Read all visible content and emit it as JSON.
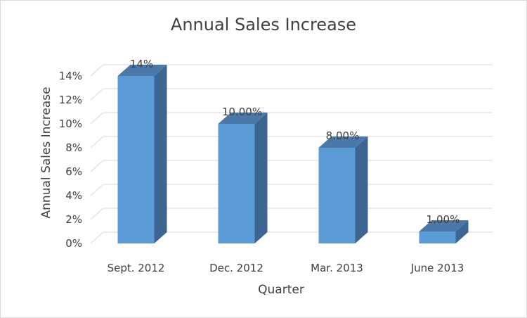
{
  "chart_data": {
    "type": "bar",
    "title": "Annual Sales Increase",
    "xlabel": "Quarter",
    "ylabel": "Annual Sales Increase",
    "categories": [
      "Sept. 2012",
      "Dec. 2012",
      "Mar. 2013",
      "June 2013"
    ],
    "values": [
      14,
      10,
      8,
      1
    ],
    "data_labels": [
      "14%",
      "10.00%",
      "8.00%",
      "1.00%"
    ],
    "ylim": [
      0,
      14
    ],
    "yticks": [
      "0%",
      "2%",
      "4%",
      "6%",
      "8%",
      "10%",
      "12%",
      "14%"
    ],
    "yticks_values": [
      0,
      2,
      4,
      6,
      8,
      10,
      12,
      14
    ],
    "grid": true,
    "legend": "none",
    "style": "3d-column",
    "colors": {
      "bar_front": "#5b9bd5",
      "bar_top": "#4a78a8",
      "bar_side": "#3d6591",
      "grid": "#d9d9d9",
      "text": "#404040"
    }
  }
}
